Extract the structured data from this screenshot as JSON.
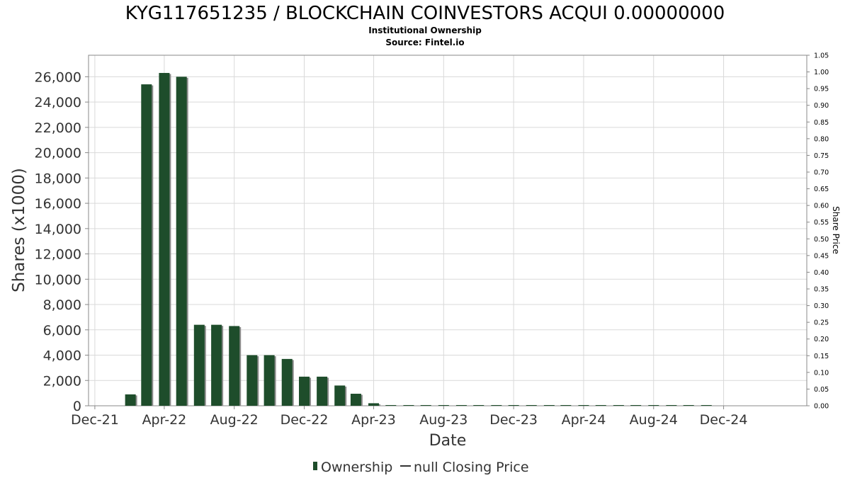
{
  "chart_data": {
    "type": "bar",
    "title": "KYG117651235 / BLOCKCHAIN COINVESTORS ACQUI 0.00000000",
    "subtitle_1": "Institutional Ownership",
    "subtitle_2": "Source: Fintel.io",
    "xlabel": "Date",
    "ylabel": "Shares (x1000)",
    "y2label": "Share Price",
    "ylim": [
      0,
      27700
    ],
    "y2lim": [
      0,
      1.05
    ],
    "xlim": [
      "2021-11-20",
      "2025-04-25"
    ],
    "grid": true,
    "legend_position": "bottom",
    "y_ticks": [
      0,
      2000,
      4000,
      6000,
      8000,
      10000,
      12000,
      14000,
      16000,
      18000,
      20000,
      22000,
      24000,
      26000
    ],
    "y_tick_labels": [
      "0",
      "2,000",
      "4,000",
      "6,000",
      "8,000",
      "10,000",
      "12,000",
      "14,000",
      "16,000",
      "18,000",
      "20,000",
      "22,000",
      "24,000",
      "26,000"
    ],
    "y2_ticks": [
      0,
      0.05,
      0.1,
      0.15,
      0.2,
      0.25,
      0.3,
      0.35,
      0.4,
      0.45,
      0.5,
      0.55,
      0.6,
      0.65,
      0.7,
      0.75,
      0.8,
      0.85,
      0.9,
      0.95,
      1.0,
      1.05
    ],
    "y2_tick_labels": [
      "0.00",
      "0.05",
      "0.10",
      "0.15",
      "0.20",
      "0.25",
      "0.30",
      "0.35",
      "0.40",
      "0.45",
      "0.50",
      "0.55",
      "0.60",
      "0.65",
      "0.70",
      "0.75",
      "0.80",
      "0.85",
      "0.90",
      "0.95",
      "1.00",
      "1.05"
    ],
    "x_ticks": [
      "2021-12-01",
      "2022-04-01",
      "2022-08-01",
      "2022-12-01",
      "2023-04-01",
      "2023-08-01",
      "2023-12-01",
      "2024-04-01",
      "2024-08-01",
      "2024-12-01"
    ],
    "x_tick_labels": [
      "Dec-21",
      "Apr-22",
      "Aug-22",
      "Dec-22",
      "Apr-23",
      "Aug-23",
      "Dec-23",
      "Apr-24",
      "Aug-24",
      "Dec-24"
    ],
    "colors": {
      "bar": "#1e4d2b",
      "bar_shadow": "#8c8c8c",
      "grid": "#d9d9d9",
      "axis": "#888888"
    },
    "series": [
      {
        "name": "Ownership",
        "type": "bar",
        "x": [
          "2022-02-01",
          "2022-03-01",
          "2022-04-01",
          "2022-05-01",
          "2022-06-01",
          "2022-07-01",
          "2022-08-01",
          "2022-09-01",
          "2022-10-01",
          "2022-11-01",
          "2022-12-01",
          "2023-01-01",
          "2023-02-01",
          "2023-03-01",
          "2023-04-01",
          "2023-05-01",
          "2023-06-01",
          "2023-07-01",
          "2023-08-01",
          "2023-09-01",
          "2023-10-01",
          "2023-11-01",
          "2023-12-01",
          "2024-01-01",
          "2024-02-01",
          "2024-03-01",
          "2024-04-01",
          "2024-05-01",
          "2024-06-01",
          "2024-07-01",
          "2024-08-01",
          "2024-09-01",
          "2024-10-01",
          "2024-11-01"
        ],
        "values": [
          900,
          25400,
          26300,
          26000,
          6400,
          6400,
          6300,
          4000,
          4000,
          3700,
          2300,
          2300,
          1600,
          950,
          200,
          50,
          30,
          30,
          30,
          30,
          30,
          30,
          30,
          30,
          30,
          30,
          30,
          30,
          30,
          30,
          30,
          30,
          30,
          30
        ]
      },
      {
        "name": "null Closing Price",
        "type": "line",
        "values": []
      }
    ]
  }
}
